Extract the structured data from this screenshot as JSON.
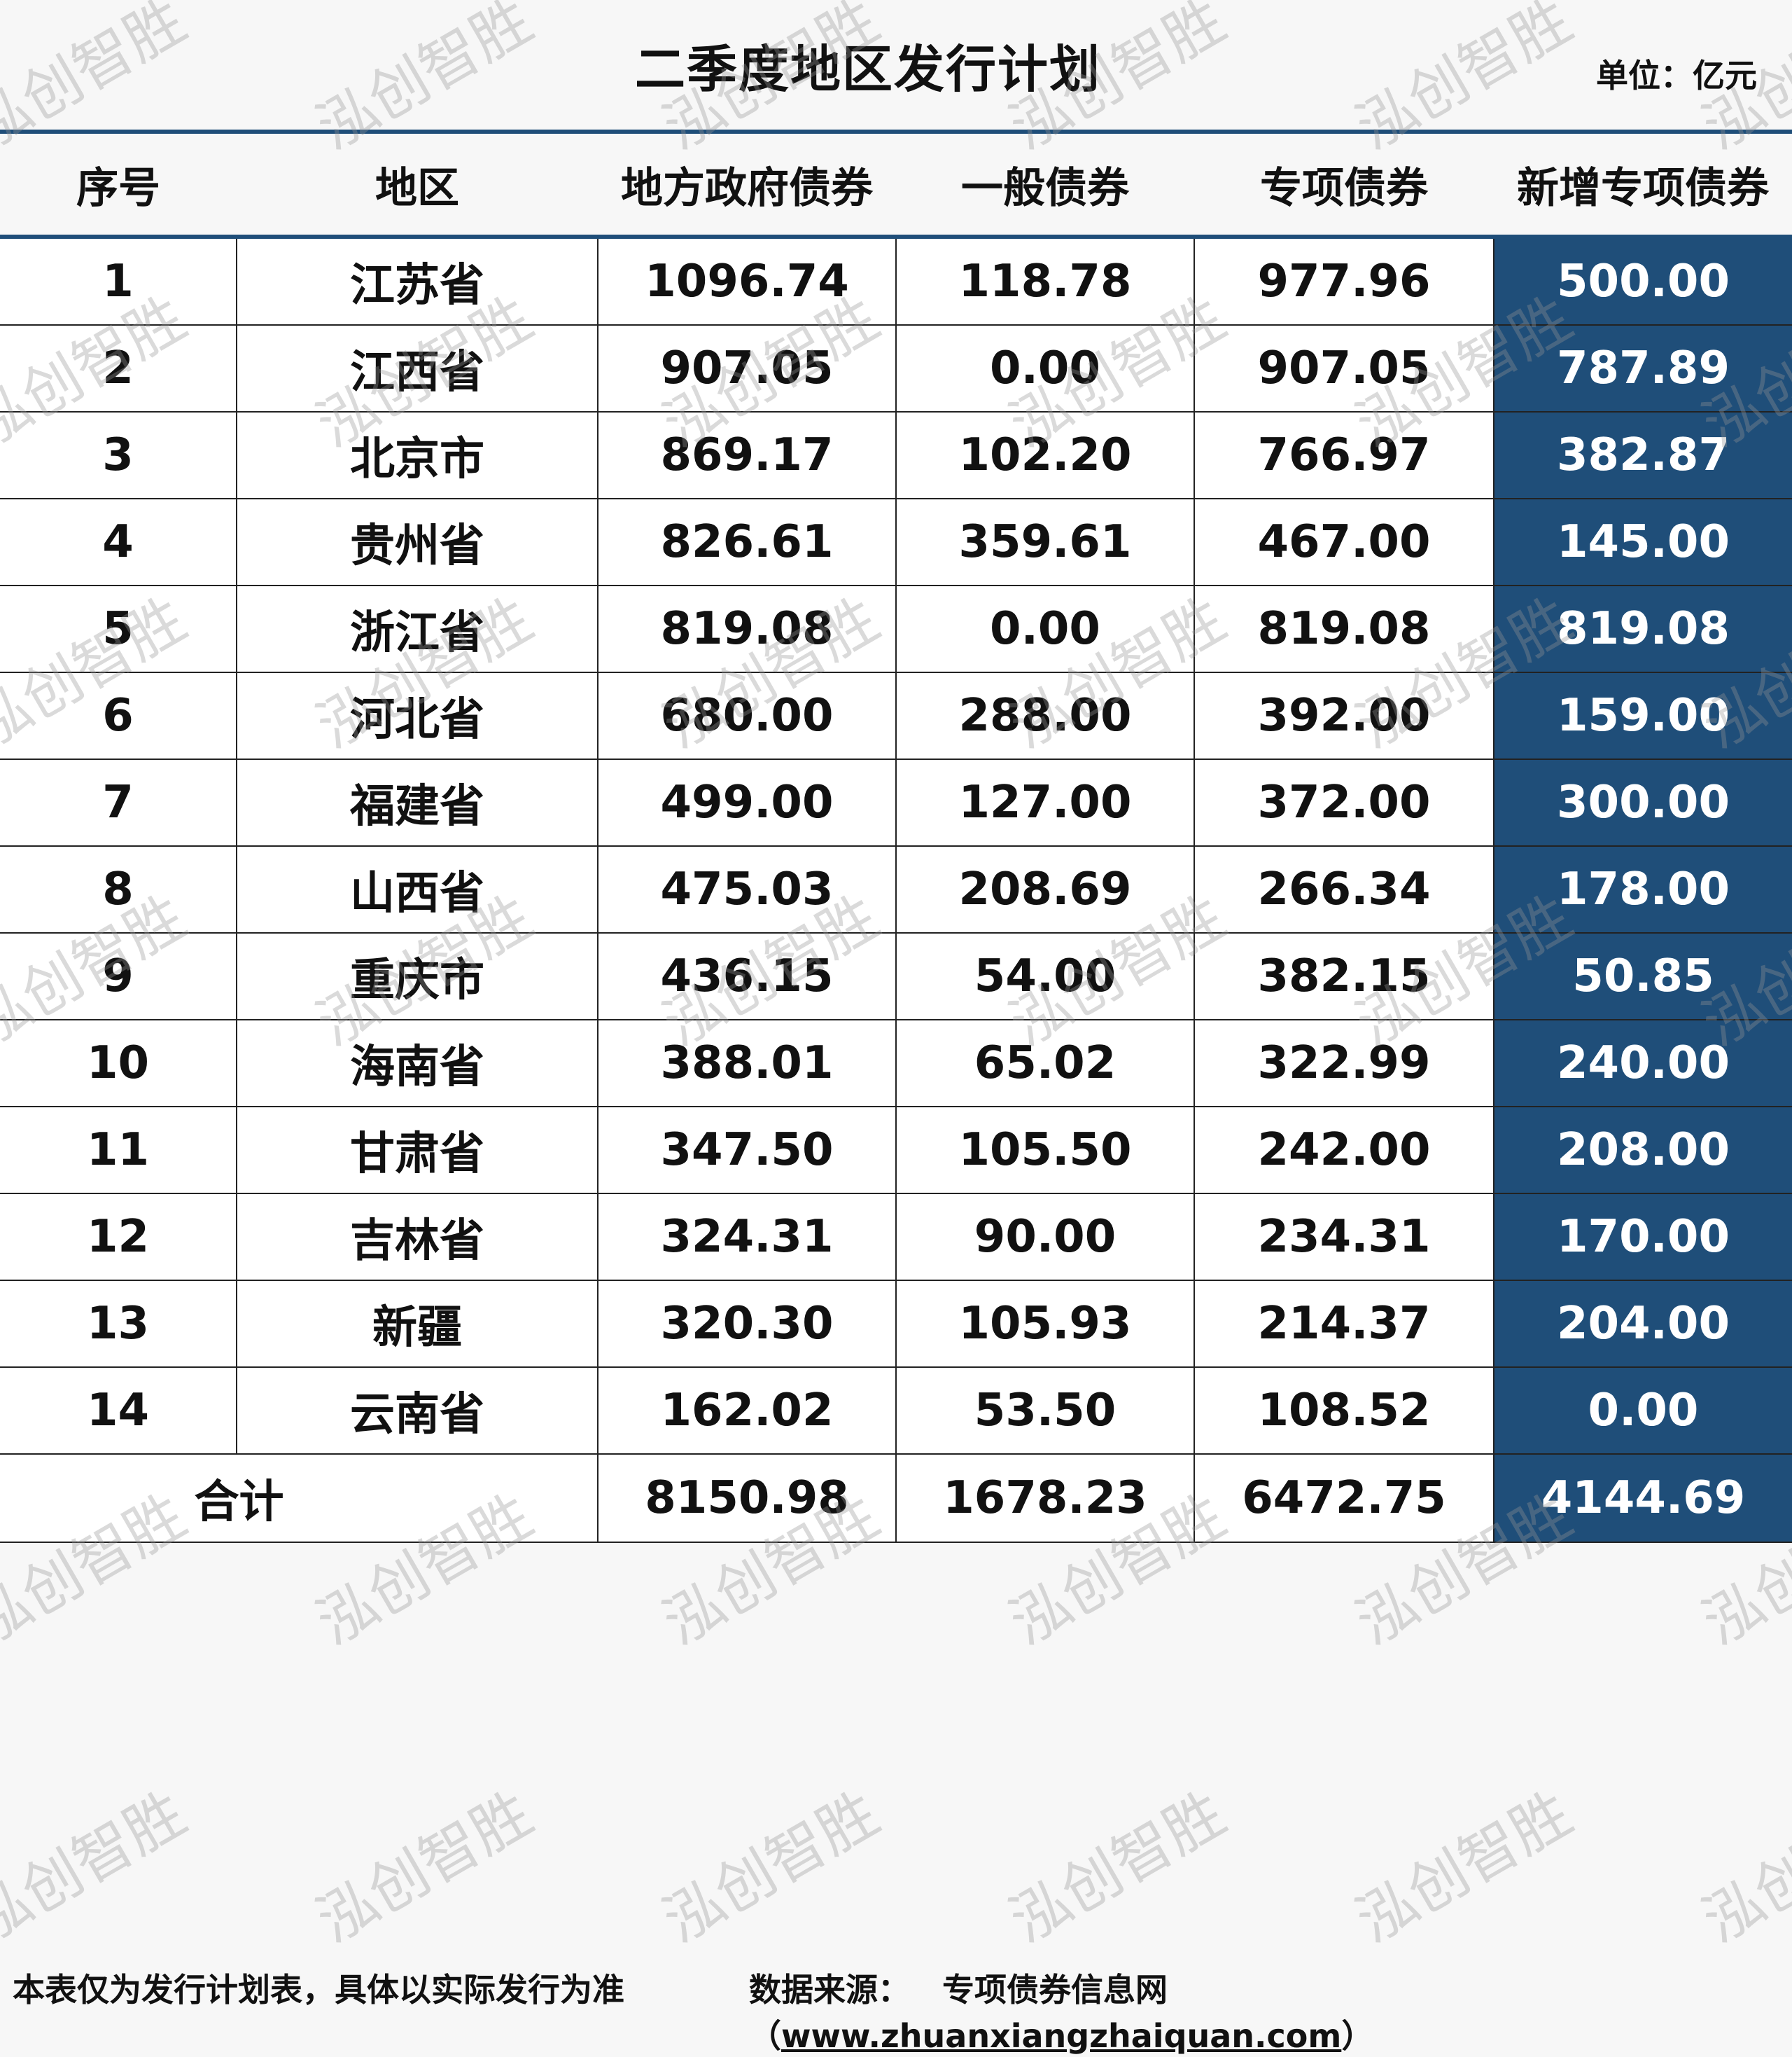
{
  "title": "二季度地区发行计划",
  "unit": "单位：亿元",
  "headers": [
    "序号",
    "地区",
    "地方政府债券",
    "一般债券",
    "专项债券",
    "新增专项债券"
  ],
  "rows": [
    [
      "1",
      "江苏省",
      "1096.74",
      "118.78",
      "977.96",
      "500.00"
    ],
    [
      "2",
      "江西省",
      "907.05",
      "0.00",
      "907.05",
      "787.89"
    ],
    [
      "3",
      "北京市",
      "869.17",
      "102.20",
      "766.97",
      "382.87"
    ],
    [
      "4",
      "贵州省",
      "826.61",
      "359.61",
      "467.00",
      "145.00"
    ],
    [
      "5",
      "浙江省",
      "819.08",
      "0.00",
      "819.08",
      "819.08"
    ],
    [
      "6",
      "河北省",
      "680.00",
      "288.00",
      "392.00",
      "159.00"
    ],
    [
      "7",
      "福建省",
      "499.00",
      "127.00",
      "372.00",
      "300.00"
    ],
    [
      "8",
      "山西省",
      "475.03",
      "208.69",
      "266.34",
      "178.00"
    ],
    [
      "9",
      "重庆市",
      "436.15",
      "54.00",
      "382.15",
      "50.85"
    ],
    [
      "10",
      "海南省",
      "388.01",
      "65.02",
      "322.99",
      "240.00"
    ],
    [
      "11",
      "甘肃省",
      "347.50",
      "105.50",
      "242.00",
      "208.00"
    ],
    [
      "12",
      "吉林省",
      "324.31",
      "90.00",
      "234.31",
      "170.00"
    ],
    [
      "13",
      "新疆",
      "320.30",
      "105.93",
      "214.37",
      "204.00"
    ],
    [
      "14",
      "云南省",
      "162.02",
      "53.50",
      "108.52",
      "0.00"
    ]
  ],
  "total": {
    "label": "合计",
    "values": [
      "8150.98",
      "1678.23",
      "6472.75",
      "4144.69"
    ]
  },
  "footer": {
    "note": "本表仅为发行计划表，具体以实际发行为准",
    "source_label": "数据来源：",
    "source_name": "专项债券信息网（",
    "source_url": "www.zhuanxiangzhaiquan.com",
    "source_close": "）"
  },
  "watermark": "泓创智胜",
  "colors": {
    "accent": "#1f4e79"
  }
}
